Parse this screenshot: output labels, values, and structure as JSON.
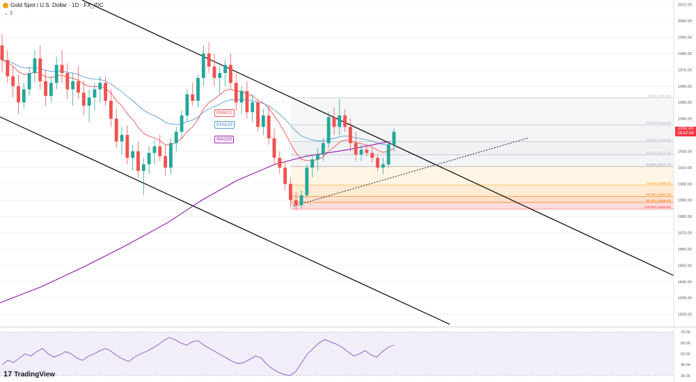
{
  "header": {
    "symbol_title": "Gold Spot / U.S. Dollar · 1D · FX_IDC",
    "sub_label": "3"
  },
  "indicators": {
    "ema12": "EMA12",
    "ema26": "EMA26",
    "ma200": "MA200"
  },
  "price_axis": {
    "ticks": [
      "2010.00",
      "2000.00",
      "1990.00",
      "1980.00",
      "1970.00",
      "1960.00",
      "1950.00",
      "1940.00",
      "1930.00",
      "1920.00",
      "1910.00",
      "1900.00",
      "1890.00",
      "1880.00",
      "1870.00",
      "1860.00",
      "1850.00",
      "1840.00",
      "1830.00",
      "1820.00"
    ],
    "current_price": "1932.30",
    "countdown": "19:42:44"
  },
  "fib_levels": [
    {
      "label": "0.00% (1952.96)",
      "value": 1952.96,
      "color": "#b2b5be"
    },
    {
      "label": "23.60% (1936.35)",
      "value": 1936.35,
      "color": "#b2b5be"
    },
    {
      "label": "38.20% (1926.05)",
      "value": 1926.05,
      "color": "#b2b5be"
    },
    {
      "label": "50.00% (1917.79)",
      "value": 1917.79,
      "color": "#b2b5be"
    },
    {
      "label": "61.80% (1910.73)",
      "value": 1910.73,
      "color": "#9598a1"
    },
    {
      "label": "78.60% (1899.26)",
      "value": 1899.26,
      "color": "#ff9800"
    },
    {
      "label": "88.70% (1892.34)",
      "value": 1892.34,
      "color": "#f57c00"
    },
    {
      "label": "94.20% (1888.60)",
      "value": 1888.6,
      "color": "#ef6c00"
    },
    {
      "label": "100.00% (1884.64)",
      "value": 1884.64,
      "color": "#f23645"
    }
  ],
  "rsi": {
    "ticks": [
      "70.00",
      "60.00",
      "50.00",
      "40.00",
      "30.00"
    ],
    "levels": [
      30,
      70
    ]
  },
  "branding": {
    "logo_text": "TradingView",
    "logo_mark": "17"
  },
  "colors": {
    "up": "#26a69a",
    "down": "#ef5350",
    "ema12": "#ef5350",
    "ema26": "#5b9bd5",
    "ma200": "#9c27b0",
    "rsi": "#7e57c2",
    "channel": "#000000"
  },
  "chart_data": {
    "type": "candlestick",
    "y_range": [
      1813,
      2012
    ],
    "candles": [
      [
        1985,
        1992,
        1969,
        1976
      ],
      [
        1976,
        1982,
        1962,
        1966
      ],
      [
        1966,
        1972,
        1953,
        1960
      ],
      [
        1960,
        1967,
        1943,
        1950
      ],
      [
        1950,
        1962,
        1946,
        1958
      ],
      [
        1958,
        1972,
        1954,
        1968
      ],
      [
        1968,
        1982,
        1962,
        1977
      ],
      [
        1977,
        1985,
        1958,
        1963
      ],
      [
        1963,
        1970,
        1948,
        1954
      ],
      [
        1954,
        1966,
        1950,
        1962
      ],
      [
        1962,
        1978,
        1958,
        1973
      ],
      [
        1973,
        1982,
        1962,
        1968
      ],
      [
        1968,
        1974,
        1952,
        1958
      ],
      [
        1958,
        1968,
        1948,
        1963
      ],
      [
        1963,
        1972,
        1952,
        1956
      ],
      [
        1956,
        1963,
        1942,
        1948
      ],
      [
        1948,
        1958,
        1938,
        1953
      ],
      [
        1953,
        1962,
        1945,
        1958
      ],
      [
        1958,
        1966,
        1950,
        1962
      ],
      [
        1962,
        1966,
        1948,
        1951
      ],
      [
        1951,
        1958,
        1935,
        1940
      ],
      [
        1940,
        1946,
        1922,
        1926
      ],
      [
        1926,
        1935,
        1918,
        1930
      ],
      [
        1930,
        1936,
        1912,
        1916
      ],
      [
        1916,
        1924,
        1908,
        1920
      ],
      [
        1920,
        1926,
        1904,
        1908
      ],
      [
        1908,
        1916,
        1893,
        1912
      ],
      [
        1912,
        1923,
        1906,
        1919
      ],
      [
        1919,
        1927,
        1912,
        1923
      ],
      [
        1923,
        1930,
        1914,
        1917
      ],
      [
        1917,
        1924,
        1905,
        1910
      ],
      [
        1910,
        1928,
        1906,
        1925
      ],
      [
        1925,
        1935,
        1920,
        1932
      ],
      [
        1932,
        1945,
        1928,
        1942
      ],
      [
        1942,
        1958,
        1938,
        1955
      ],
      [
        1955,
        1962,
        1948,
        1951
      ],
      [
        1951,
        1967,
        1947,
        1965
      ],
      [
        1965,
        1985,
        1960,
        1980
      ],
      [
        1980,
        1987,
        1968,
        1972
      ],
      [
        1972,
        1980,
        1960,
        1965
      ],
      [
        1965,
        1972,
        1955,
        1968
      ],
      [
        1968,
        1976,
        1960,
        1973
      ],
      [
        1973,
        1980,
        1958,
        1962
      ],
      [
        1962,
        1968,
        1945,
        1950
      ],
      [
        1950,
        1960,
        1943,
        1957
      ],
      [
        1957,
        1963,
        1940,
        1944
      ],
      [
        1944,
        1955,
        1938,
        1950
      ],
      [
        1950,
        1952,
        1932,
        1935
      ],
      [
        1935,
        1946,
        1930,
        1942
      ],
      [
        1942,
        1948,
        1924,
        1928
      ],
      [
        1928,
        1934,
        1912,
        1916
      ],
      [
        1916,
        1920,
        1906,
        1910
      ],
      [
        1910,
        1914,
        1896,
        1900
      ],
      [
        1900,
        1904,
        1886,
        1890
      ],
      [
        1890,
        1895,
        1884,
        1887
      ],
      [
        1887,
        1896,
        1885,
        1893
      ],
      [
        1893,
        1912,
        1891,
        1910
      ],
      [
        1910,
        1918,
        1904,
        1915
      ],
      [
        1915,
        1922,
        1908,
        1918
      ],
      [
        1918,
        1928,
        1914,
        1925
      ],
      [
        1925,
        1944,
        1922,
        1941
      ],
      [
        1941,
        1947,
        1930,
        1935
      ],
      [
        1935,
        1952,
        1930,
        1942
      ],
      [
        1942,
        1946,
        1932,
        1935
      ],
      [
        1935,
        1940,
        1920,
        1925
      ],
      [
        1925,
        1932,
        1914,
        1918
      ],
      [
        1918,
        1924,
        1914,
        1921
      ],
      [
        1921,
        1924,
        1917,
        1919
      ],
      [
        1919,
        1922,
        1913,
        1916
      ],
      [
        1916,
        1918,
        1908,
        1910
      ],
      [
        1910,
        1916,
        1906,
        1912
      ],
      [
        1912,
        1926,
        1910,
        1924
      ],
      [
        1924,
        1934,
        1920,
        1932
      ]
    ]
  }
}
